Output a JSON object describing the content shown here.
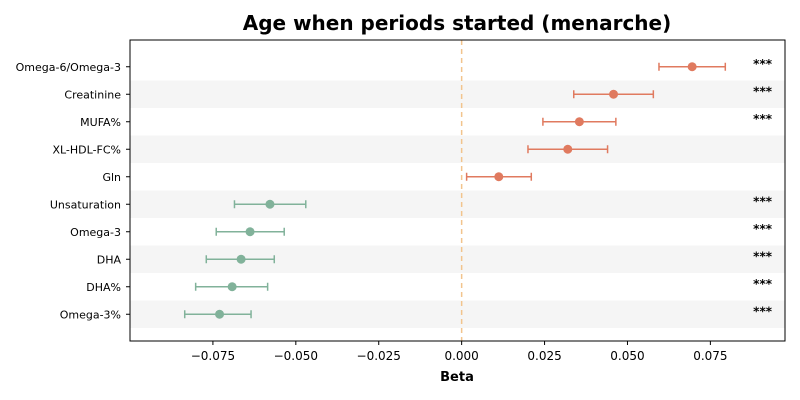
{
  "chart_data": {
    "type": "forest",
    "title": "Age when periods started (menarche)",
    "xlabel": "Beta",
    "xlim": [
      -0.1,
      0.0975
    ],
    "xticks": [
      -0.075,
      -0.05,
      -0.025,
      0.0,
      0.025,
      0.05,
      0.075
    ],
    "xtick_labels": [
      "−0.075",
      "−0.050",
      "−0.025",
      "0.000",
      "0.025",
      "0.050",
      "0.075"
    ],
    "reference_line": 0.0,
    "colors": {
      "positive": "#e07a5f",
      "negative": "#81b29a",
      "reference": "#f2c48d",
      "band": "#f5f5f5"
    },
    "rows": [
      {
        "label": "Omega-6/Omega-3",
        "beta": 0.0695,
        "ci": [
          0.0595,
          0.0795
        ],
        "sig": "***"
      },
      {
        "label": "Creatinine",
        "beta": 0.0458,
        "ci": [
          0.0338,
          0.0578
        ],
        "sig": "***"
      },
      {
        "label": "MUFA%",
        "beta": 0.0355,
        "ci": [
          0.0245,
          0.0465
        ],
        "sig": "***"
      },
      {
        "label": "XL-HDL-FC%",
        "beta": 0.032,
        "ci": [
          0.02,
          0.044
        ],
        "sig": ""
      },
      {
        "label": "Gln",
        "beta": 0.0112,
        "ci": [
          0.0015,
          0.021
        ],
        "sig": ""
      },
      {
        "label": "Unsaturation",
        "beta": -0.0578,
        "ci": [
          -0.0685,
          -0.047
        ],
        "sig": "***"
      },
      {
        "label": "Omega-3",
        "beta": -0.0638,
        "ci": [
          -0.074,
          -0.0535
        ],
        "sig": "***"
      },
      {
        "label": "DHA",
        "beta": -0.0665,
        "ci": [
          -0.077,
          -0.0565
        ],
        "sig": "***"
      },
      {
        "label": "DHA%",
        "beta": -0.0692,
        "ci": [
          -0.0802,
          -0.0585
        ],
        "sig": "***"
      },
      {
        "label": "Omega-3%",
        "beta": -0.073,
        "ci": [
          -0.0835,
          -0.0635
        ],
        "sig": "***"
      }
    ]
  }
}
